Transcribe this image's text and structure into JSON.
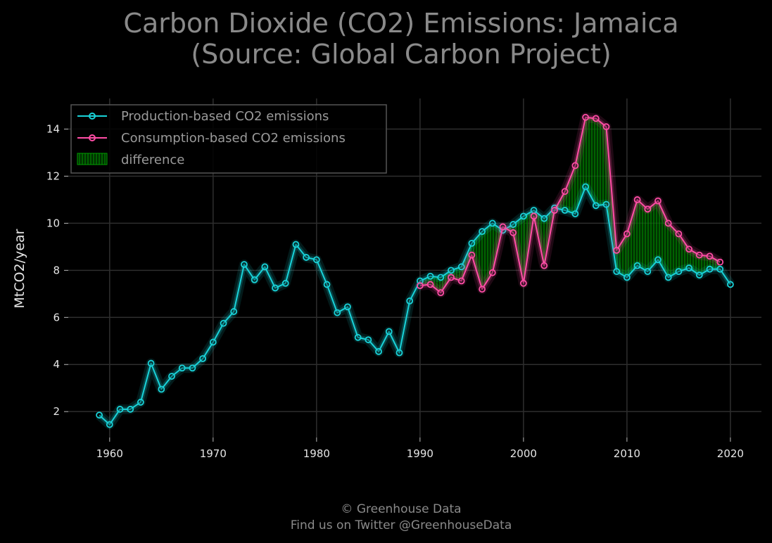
{
  "chart_data": {
    "type": "line",
    "title_lines": [
      "Carbon Dioxide (CO2) Emissions: Jamaica",
      "(Source: Global Carbon Project)"
    ],
    "xlabel": "",
    "ylabel": "MtCO2/year",
    "xlim": [
      1956,
      2023
    ],
    "ylim": [
      0.9,
      15.3
    ],
    "xticks": [
      1960,
      1970,
      1980,
      1990,
      2000,
      2010,
      2020
    ],
    "yticks": [
      2,
      4,
      6,
      8,
      10,
      12,
      14
    ],
    "grid": true,
    "legend_position": "top-left",
    "fill_label": "difference",
    "fill_color": "#00a000",
    "series": [
      {
        "name": "Production-based CO2 emissions",
        "color": "#19d3d9",
        "x": [
          1959,
          1960,
          1961,
          1962,
          1963,
          1964,
          1965,
          1966,
          1967,
          1968,
          1969,
          1970,
          1971,
          1972,
          1973,
          1974,
          1975,
          1976,
          1977,
          1978,
          1979,
          1980,
          1981,
          1982,
          1983,
          1984,
          1985,
          1986,
          1987,
          1988,
          1989,
          1990,
          1991,
          1992,
          1993,
          1994,
          1995,
          1996,
          1997,
          1998,
          1999,
          2000,
          2001,
          2002,
          2003,
          2004,
          2005,
          2006,
          2007,
          2008,
          2009,
          2010,
          2011,
          2012,
          2013,
          2014,
          2015,
          2016,
          2017,
          2018,
          2019,
          2020
        ],
        "values": [
          1.85,
          1.45,
          2.1,
          2.1,
          2.4,
          4.05,
          2.95,
          3.5,
          3.85,
          3.85,
          4.25,
          4.95,
          5.75,
          6.25,
          8.25,
          7.6,
          8.15,
          7.25,
          7.45,
          9.1,
          8.55,
          8.45,
          7.4,
          6.2,
          6.45,
          5.15,
          5.05,
          4.55,
          5.4,
          4.5,
          6.7,
          7.55,
          7.75,
          7.7,
          8.0,
          8.15,
          9.15,
          9.65,
          10.0,
          9.7,
          9.95,
          10.3,
          10.55,
          10.2,
          10.65,
          10.55,
          10.4,
          11.55,
          10.75,
          10.8,
          7.95,
          7.7,
          8.2,
          7.95,
          8.45,
          7.7,
          7.95,
          8.1,
          7.8,
          8.05,
          8.05,
          7.4
        ]
      },
      {
        "name": "Consumption-based CO2 emissions",
        "color": "#ff4da6",
        "x": [
          1990,
          1991,
          1992,
          1993,
          1994,
          1995,
          1996,
          1997,
          1998,
          1999,
          2000,
          2001,
          2002,
          2003,
          2004,
          2005,
          2006,
          2007,
          2008,
          2009,
          2010,
          2011,
          2012,
          2013,
          2014,
          2015,
          2016,
          2017,
          2018,
          2019
        ],
        "values": [
          7.35,
          7.4,
          7.05,
          7.7,
          7.55,
          8.65,
          7.2,
          7.9,
          9.85,
          9.6,
          7.45,
          10.3,
          8.2,
          10.55,
          11.35,
          12.45,
          14.5,
          14.45,
          14.1,
          8.85,
          9.55,
          11.0,
          10.6,
          10.95,
          10.0,
          9.55,
          8.9,
          8.65,
          8.6,
          8.35
        ]
      }
    ]
  },
  "footer": {
    "line1": "© Greenhouse Data",
    "line2": "Find us on Twitter @GreenhouseData"
  }
}
